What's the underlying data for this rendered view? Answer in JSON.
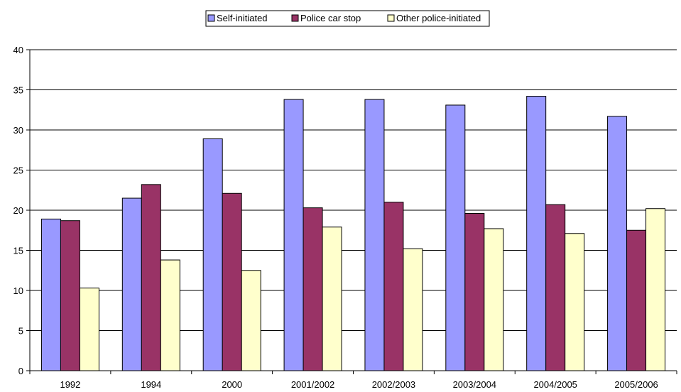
{
  "chart_data": {
    "type": "bar",
    "title": "",
    "xlabel": "",
    "ylabel": "",
    "categories": [
      "1992",
      "1994",
      "2000",
      "2001/2002",
      "2002/2003",
      "2003/2004",
      "2004/2005",
      "2005/2006"
    ],
    "series": [
      {
        "name": "Self-initiated",
        "color": "#9999ff",
        "values": [
          18.9,
          21.5,
          28.9,
          33.8,
          33.8,
          33.1,
          34.2,
          31.7
        ]
      },
      {
        "name": "Police car stop",
        "color": "#993366",
        "values": [
          18.7,
          23.2,
          22.1,
          20.3,
          21.0,
          19.6,
          20.7,
          17.5
        ]
      },
      {
        "name": "Other police-initiated",
        "color": "#ffffcc",
        "values": [
          10.3,
          13.8,
          12.5,
          17.9,
          15.2,
          17.7,
          17.1,
          20.2
        ]
      }
    ],
    "ylim": [
      0,
      40
    ],
    "yticks": [
      0,
      5,
      10,
      15,
      20,
      25,
      30,
      35,
      40
    ],
    "grid": true,
    "legend_position": "top-center"
  }
}
